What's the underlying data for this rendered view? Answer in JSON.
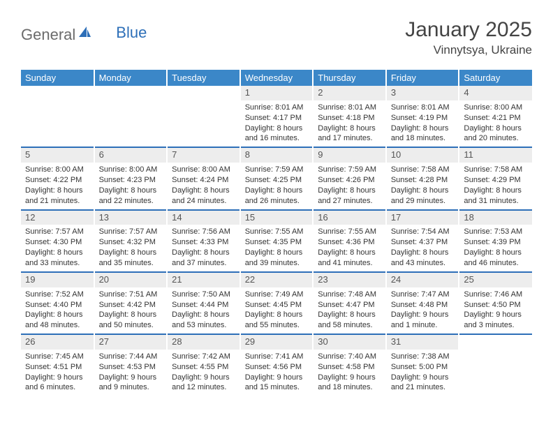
{
  "logo": {
    "general": "General",
    "blue": "Blue"
  },
  "title": "January 2025",
  "location": "Vinnytsya, Ukraine",
  "colors": {
    "header_bg": "#3b87c8",
    "header_text": "#ffffff",
    "row_divider": "#2d6fb8",
    "daynum_bg": "#ededed",
    "body_text": "#333333",
    "logo_gray": "#6b6b6b",
    "logo_blue": "#2d6fb8"
  },
  "weekdays": [
    "Sunday",
    "Monday",
    "Tuesday",
    "Wednesday",
    "Thursday",
    "Friday",
    "Saturday"
  ],
  "weeks": [
    [
      null,
      null,
      null,
      {
        "n": "1",
        "sunrise": "8:01 AM",
        "sunset": "4:17 PM",
        "dl1": "8 hours",
        "dl2": "and 16 minutes."
      },
      {
        "n": "2",
        "sunrise": "8:01 AM",
        "sunset": "4:18 PM",
        "dl1": "8 hours",
        "dl2": "and 17 minutes."
      },
      {
        "n": "3",
        "sunrise": "8:01 AM",
        "sunset": "4:19 PM",
        "dl1": "8 hours",
        "dl2": "and 18 minutes."
      },
      {
        "n": "4",
        "sunrise": "8:00 AM",
        "sunset": "4:21 PM",
        "dl1": "8 hours",
        "dl2": "and 20 minutes."
      }
    ],
    [
      {
        "n": "5",
        "sunrise": "8:00 AM",
        "sunset": "4:22 PM",
        "dl1": "8 hours",
        "dl2": "and 21 minutes."
      },
      {
        "n": "6",
        "sunrise": "8:00 AM",
        "sunset": "4:23 PM",
        "dl1": "8 hours",
        "dl2": "and 22 minutes."
      },
      {
        "n": "7",
        "sunrise": "8:00 AM",
        "sunset": "4:24 PM",
        "dl1": "8 hours",
        "dl2": "and 24 minutes."
      },
      {
        "n": "8",
        "sunrise": "7:59 AM",
        "sunset": "4:25 PM",
        "dl1": "8 hours",
        "dl2": "and 26 minutes."
      },
      {
        "n": "9",
        "sunrise": "7:59 AM",
        "sunset": "4:26 PM",
        "dl1": "8 hours",
        "dl2": "and 27 minutes."
      },
      {
        "n": "10",
        "sunrise": "7:58 AM",
        "sunset": "4:28 PM",
        "dl1": "8 hours",
        "dl2": "and 29 minutes."
      },
      {
        "n": "11",
        "sunrise": "7:58 AM",
        "sunset": "4:29 PM",
        "dl1": "8 hours",
        "dl2": "and 31 minutes."
      }
    ],
    [
      {
        "n": "12",
        "sunrise": "7:57 AM",
        "sunset": "4:30 PM",
        "dl1": "8 hours",
        "dl2": "and 33 minutes."
      },
      {
        "n": "13",
        "sunrise": "7:57 AM",
        "sunset": "4:32 PM",
        "dl1": "8 hours",
        "dl2": "and 35 minutes."
      },
      {
        "n": "14",
        "sunrise": "7:56 AM",
        "sunset": "4:33 PM",
        "dl1": "8 hours",
        "dl2": "and 37 minutes."
      },
      {
        "n": "15",
        "sunrise": "7:55 AM",
        "sunset": "4:35 PM",
        "dl1": "8 hours",
        "dl2": "and 39 minutes."
      },
      {
        "n": "16",
        "sunrise": "7:55 AM",
        "sunset": "4:36 PM",
        "dl1": "8 hours",
        "dl2": "and 41 minutes."
      },
      {
        "n": "17",
        "sunrise": "7:54 AM",
        "sunset": "4:37 PM",
        "dl1": "8 hours",
        "dl2": "and 43 minutes."
      },
      {
        "n": "18",
        "sunrise": "7:53 AM",
        "sunset": "4:39 PM",
        "dl1": "8 hours",
        "dl2": "and 46 minutes."
      }
    ],
    [
      {
        "n": "19",
        "sunrise": "7:52 AM",
        "sunset": "4:40 PM",
        "dl1": "8 hours",
        "dl2": "and 48 minutes."
      },
      {
        "n": "20",
        "sunrise": "7:51 AM",
        "sunset": "4:42 PM",
        "dl1": "8 hours",
        "dl2": "and 50 minutes."
      },
      {
        "n": "21",
        "sunrise": "7:50 AM",
        "sunset": "4:44 PM",
        "dl1": "8 hours",
        "dl2": "and 53 minutes."
      },
      {
        "n": "22",
        "sunrise": "7:49 AM",
        "sunset": "4:45 PM",
        "dl1": "8 hours",
        "dl2": "and 55 minutes."
      },
      {
        "n": "23",
        "sunrise": "7:48 AM",
        "sunset": "4:47 PM",
        "dl1": "8 hours",
        "dl2": "and 58 minutes."
      },
      {
        "n": "24",
        "sunrise": "7:47 AM",
        "sunset": "4:48 PM",
        "dl1": "9 hours",
        "dl2": "and 1 minute."
      },
      {
        "n": "25",
        "sunrise": "7:46 AM",
        "sunset": "4:50 PM",
        "dl1": "9 hours",
        "dl2": "and 3 minutes."
      }
    ],
    [
      {
        "n": "26",
        "sunrise": "7:45 AM",
        "sunset": "4:51 PM",
        "dl1": "9 hours",
        "dl2": "and 6 minutes."
      },
      {
        "n": "27",
        "sunrise": "7:44 AM",
        "sunset": "4:53 PM",
        "dl1": "9 hours",
        "dl2": "and 9 minutes."
      },
      {
        "n": "28",
        "sunrise": "7:42 AM",
        "sunset": "4:55 PM",
        "dl1": "9 hours",
        "dl2": "and 12 minutes."
      },
      {
        "n": "29",
        "sunrise": "7:41 AM",
        "sunset": "4:56 PM",
        "dl1": "9 hours",
        "dl2": "and 15 minutes."
      },
      {
        "n": "30",
        "sunrise": "7:40 AM",
        "sunset": "4:58 PM",
        "dl1": "9 hours",
        "dl2": "and 18 minutes."
      },
      {
        "n": "31",
        "sunrise": "7:38 AM",
        "sunset": "5:00 PM",
        "dl1": "9 hours",
        "dl2": "and 21 minutes."
      },
      null
    ]
  ],
  "labels": {
    "sunrise": "Sunrise:",
    "sunset": "Sunset:",
    "daylight": "Daylight:"
  }
}
